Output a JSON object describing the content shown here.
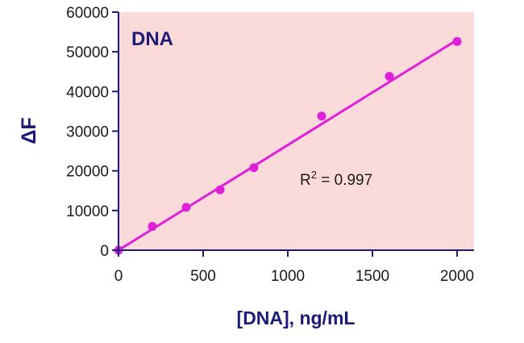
{
  "chart_data": {
    "type": "scatter",
    "title": "DNA",
    "xlabel": "[DNA], ng/mL",
    "ylabel": "ΔF",
    "xlim": [
      0,
      2100
    ],
    "ylim": [
      0,
      60000
    ],
    "xticks": [
      0,
      500,
      1000,
      1500,
      2000
    ],
    "yticks": [
      0,
      10000,
      20000,
      30000,
      40000,
      50000,
      60000
    ],
    "xtick_labels": [
      "0",
      "500",
      "1000",
      "1500",
      "2000"
    ],
    "ytick_labels": [
      "0",
      "10000",
      "20000",
      "30000",
      "40000",
      "50000",
      "60000"
    ],
    "grid": false,
    "series": [
      {
        "x": [
          0,
          200,
          400,
          600,
          800,
          1200,
          1600,
          2000
        ],
        "y": [
          0,
          6000,
          10800,
          15200,
          20800,
          33800,
          43800,
          52600
        ]
      }
    ],
    "fit_line": {
      "x": [
        0,
        2000
      ],
      "y": [
        0,
        53000
      ]
    },
    "annotation": {
      "prefix": "R",
      "sup": "2",
      "text": " = 0.997"
    },
    "colors": {
      "plot_background": "#fbdada",
      "series": "#e020d8",
      "axis": "#1c1c78",
      "text": "#1a1a1a"
    }
  }
}
